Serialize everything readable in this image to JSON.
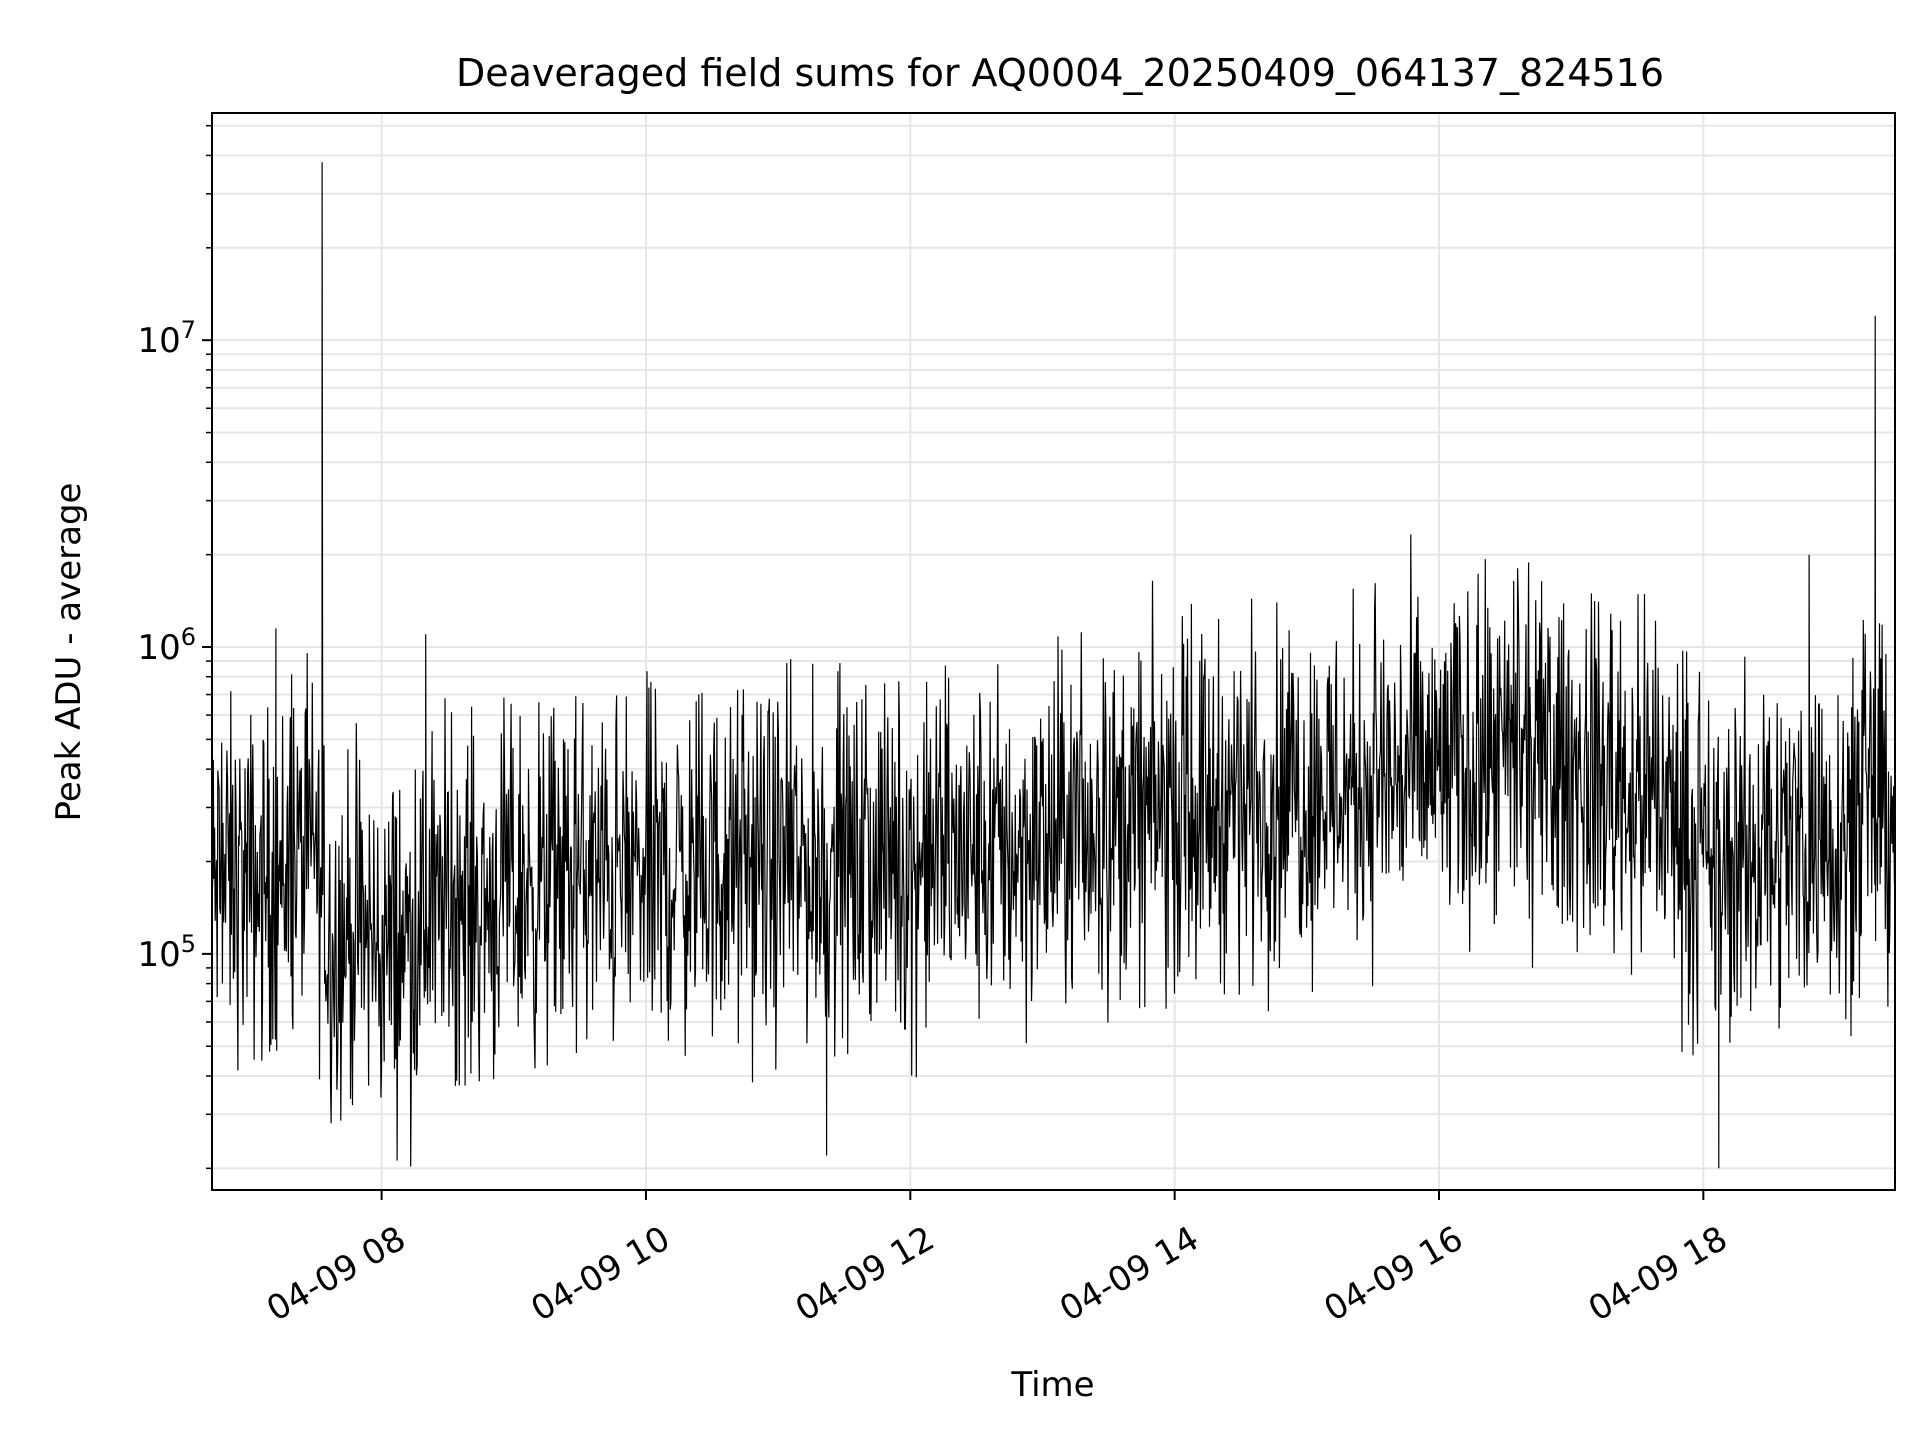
{
  "chart_data": {
    "type": "line",
    "title": "Deaveraged field sums for AQ0004_20250409_064137_824516",
    "xlabel": "Time",
    "ylabel": "Peak ADU - average",
    "yscale": "log",
    "xlim": [
      "2025-04-09 06:43",
      "2025-04-09 19:27"
    ],
    "ylim": [
      17000,
      55000000
    ],
    "grid": true,
    "line_color": "#000000",
    "x_ticks": [
      {
        "value": "2025-04-09 08:00",
        "label": "04-09 08"
      },
      {
        "value": "2025-04-09 10:00",
        "label": "04-09 10"
      },
      {
        "value": "2025-04-09 12:00",
        "label": "04-09 12"
      },
      {
        "value": "2025-04-09 14:00",
        "label": "04-09 14"
      },
      {
        "value": "2025-04-09 16:00",
        "label": "04-09 16"
      },
      {
        "value": "2025-04-09 18:00",
        "label": "04-09 18"
      }
    ],
    "y_ticks": [
      {
        "value": 100000,
        "base": "10",
        "exp": "5"
      },
      {
        "value": 1000000,
        "base": "10",
        "exp": "6"
      },
      {
        "value": 10000000,
        "base": "10",
        "exp": "7"
      }
    ],
    "series": [
      {
        "x": [
          "2025-04-09 06:43",
          "2025-04-09 06:52",
          "2025-04-09 07:06",
          "2025-04-09 07:12",
          "2025-04-09 07:22",
          "2025-04-09 07:30",
          "2025-04-09 07:33",
          "2025-04-09 07:36",
          "2025-04-09 07:45",
          "2025-04-09 08:00",
          "2025-04-09 08:15",
          "2025-04-09 08:20",
          "2025-04-09 08:30",
          "2025-04-09 08:45",
          "2025-04-09 09:00",
          "2025-04-09 09:15",
          "2025-04-09 09:30",
          "2025-04-09 10:00",
          "2025-04-09 10:30",
          "2025-04-09 11:00",
          "2025-04-09 11:22",
          "2025-04-09 11:30",
          "2025-04-09 12:00",
          "2025-04-09 12:30",
          "2025-04-09 13:00",
          "2025-04-09 13:30",
          "2025-04-09 14:00",
          "2025-04-09 14:30",
          "2025-04-09 15:00",
          "2025-04-09 15:30",
          "2025-04-09 16:00",
          "2025-04-09 16:30",
          "2025-04-09 17:00",
          "2025-04-09 17:30",
          "2025-04-09 17:45",
          "2025-04-09 18:00",
          "2025-04-09 18:07",
          "2025-04-09 18:15",
          "2025-04-09 18:30",
          "2025-04-09 18:48",
          "2025-04-09 19:00",
          "2025-04-09 19:15",
          "2025-04-09 19:18",
          "2025-04-09 19:27"
        ],
        "y": [
          160000,
          175000,
          165000,
          1150000,
          195000,
          220000,
          38000000,
          110000,
          120000,
          105000,
          115000,
          1100000,
          150000,
          145000,
          160000,
          170000,
          175000,
          180000,
          185000,
          190000,
          22000,
          190000,
          195000,
          210000,
          230000,
          260000,
          300000,
          320000,
          340000,
          370000,
          400000,
          410000,
          390000,
          340000,
          290000,
          180000,
          20000,
          190000,
          230000,
          2000000,
          250000,
          270000,
          12000000,
          300000
        ]
      }
    ]
  }
}
